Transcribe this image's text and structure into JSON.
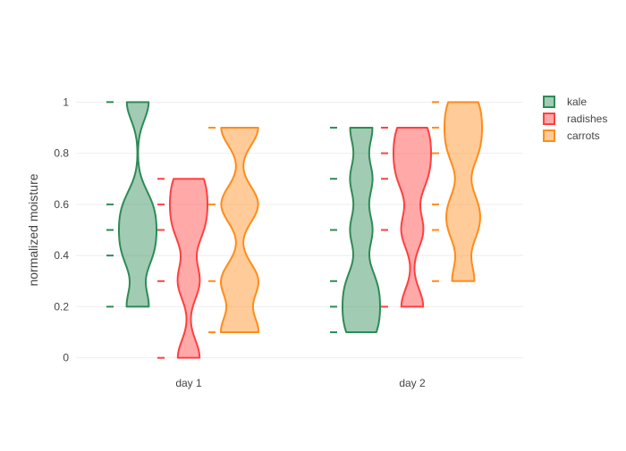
{
  "chart_data": {
    "type": "violin",
    "title": "",
    "xlabel": "",
    "ylabel": "normalized moisture",
    "categories": [
      "day 1",
      "day 2"
    ],
    "ylim": [
      -0.05,
      1.05
    ],
    "yticks": [
      0,
      0.2,
      0.4,
      0.6,
      0.8,
      1
    ],
    "ytick_labels": [
      "0",
      "0.2",
      "0.4",
      "0.6",
      "0.8",
      "1"
    ],
    "grid": true,
    "legend_position": "top-right",
    "series": [
      {
        "name": "kale",
        "color": "#2e8b57",
        "points": {
          "day 1": [
            0.2,
            0.4,
            0.5,
            0.6,
            1.0
          ],
          "day 2": [
            0.1,
            0.2,
            0.3,
            0.5,
            0.7,
            0.9
          ]
        }
      },
      {
        "name": "radishes",
        "color": "#ff4040",
        "points": {
          "day 1": [
            0.0,
            0.3,
            0.5,
            0.6,
            0.7
          ],
          "day 2": [
            0.2,
            0.5,
            0.7,
            0.8,
            0.9
          ]
        }
      },
      {
        "name": "carrots",
        "color": "#ff8c1a",
        "points": {
          "day 1": [
            0.1,
            0.3,
            0.6,
            0.9
          ],
          "day 2": [
            0.3,
            0.5,
            0.6,
            0.8,
            0.9,
            1.0
          ]
        }
      }
    ]
  }
}
